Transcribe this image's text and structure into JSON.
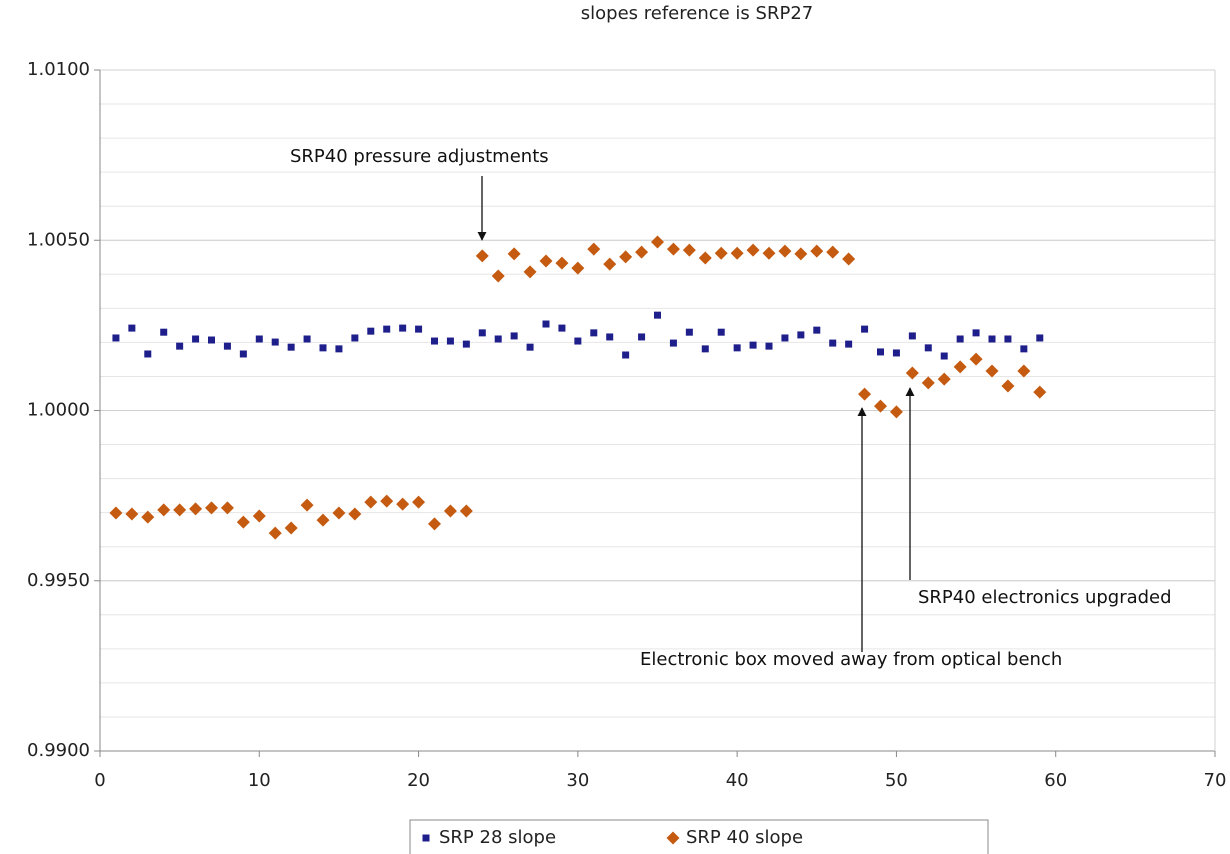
{
  "chart_data": {
    "type": "scatter",
    "title": "slopes reference is SRP27",
    "x": [
      1,
      2,
      3,
      4,
      5,
      6,
      7,
      8,
      9,
      10,
      11,
      12,
      13,
      14,
      15,
      16,
      17,
      18,
      19,
      20,
      21,
      22,
      23,
      24,
      25,
      26,
      27,
      28,
      29,
      30,
      31,
      32,
      33,
      34,
      35,
      36,
      37,
      38,
      39,
      40,
      41,
      42,
      43,
      44,
      45,
      46,
      47,
      48,
      49,
      50,
      51,
      52,
      53,
      54,
      55,
      56,
      57,
      58,
      59
    ],
    "series": [
      {
        "name": "SRP 28 slope",
        "color": "#1f1f8c",
        "marker": "square",
        "values": [
          1.00213,
          1.00242,
          1.00166,
          1.0023,
          1.00189,
          1.0021,
          1.00207,
          1.00189,
          1.00166,
          1.0021,
          1.00201,
          1.00186,
          1.0021,
          1.00184,
          1.00181,
          1.00213,
          1.00233,
          1.00239,
          1.00242,
          1.00239,
          1.00204,
          1.00204,
          1.00195,
          1.00228,
          1.0021,
          1.00219,
          1.00186,
          1.00254,
          1.00242,
          1.00204,
          1.00228,
          1.00216,
          1.00163,
          1.00216,
          1.0028,
          1.00198,
          1.0023,
          1.00181,
          1.0023,
          1.00184,
          1.00192,
          1.00189,
          1.00213,
          1.00222,
          1.00236,
          1.00198,
          1.00195,
          1.00239,
          1.00172,
          1.00169,
          1.00219,
          1.00184,
          1.0016,
          1.0021,
          1.00228,
          1.0021,
          1.0021,
          1.00181,
          1.00213
        ]
      },
      {
        "name": "SRP 40 slope",
        "color": "#c55a11",
        "marker": "diamond",
        "values": [
          0.99699,
          0.99696,
          0.99687,
          0.99708,
          0.99708,
          0.99711,
          0.99714,
          0.99714,
          0.99672,
          0.9969,
          0.9964,
          0.99655,
          0.99722,
          0.99678,
          0.99699,
          0.99696,
          0.99731,
          0.99734,
          0.99725,
          0.99731,
          0.99667,
          0.99705,
          0.99705,
          1.00454,
          1.00395,
          1.0046,
          1.00407,
          1.00439,
          1.00433,
          1.00418,
          1.00474,
          1.0043,
          1.00451,
          1.00465,
          1.00495,
          1.00474,
          1.00471,
          1.00448,
          1.00462,
          1.00462,
          1.00471,
          1.00462,
          1.00468,
          1.0046,
          1.00468,
          1.00465,
          1.00445,
          1.00048,
          1.00013,
          0.99996,
          1.0011,
          1.00081,
          1.00092,
          1.00128,
          1.00151,
          1.00116,
          1.00072,
          1.00116,
          1.00054
        ]
      }
    ],
    "xlim": [
      0,
      70
    ],
    "xticks": [
      0,
      10,
      20,
      30,
      40,
      50,
      60,
      70
    ],
    "ylim": [
      0.99,
      1.01
    ],
    "yticks": [
      {
        "value": 0.99,
        "label": "0.9900"
      },
      {
        "value": 0.995,
        "label": "0.9950"
      },
      {
        "value": 1.0,
        "label": "1.0000"
      },
      {
        "value": 1.005,
        "label": "1.0050"
      },
      {
        "value": 1.01,
        "label": "1.0100"
      }
    ],
    "grid": true,
    "minor_grid_step": 0.001,
    "legend": "bottom",
    "annotations": [
      "SRP40 pressure adjustments",
      "SRP40 electronics upgraded",
      "Electronic box moved away from optical bench"
    ]
  }
}
